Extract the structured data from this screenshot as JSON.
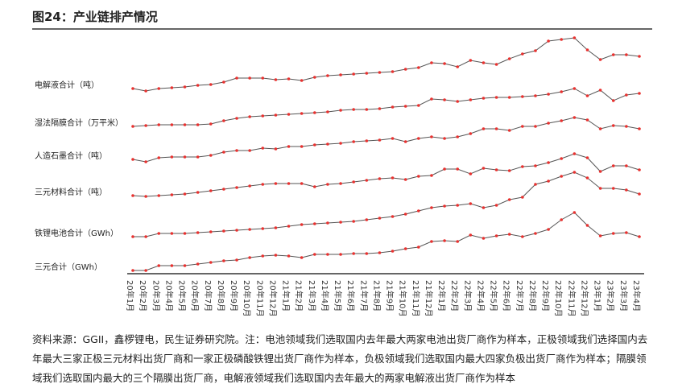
{
  "chart_data": {
    "type": "line",
    "title": "图24：产业链排产情况",
    "categories": [
      "20年1月",
      "20年2月",
      "20年3月",
      "20年4月",
      "20年5月",
      "20年6月",
      "20年7月",
      "20年8月",
      "20年9月",
      "20年10月",
      "20年11月",
      "20年12月",
      "21年1月",
      "21年2月",
      "21年3月",
      "21年4月",
      "21年5月",
      "21年6月",
      "21年7月",
      "21年8月",
      "21年9月",
      "21年10月",
      "21年11月",
      "21年12月",
      "22年1月",
      "22年2月",
      "22年3月",
      "22年4月",
      "22年5月",
      "22年6月",
      "22年7月",
      "22年8月",
      "22年9月",
      "22年10月",
      "22年11月",
      "22年12月",
      "23年1月",
      "23年2月",
      "23年3月",
      "23年4月"
    ],
    "ylim": [
      0,
      302
    ],
    "line_color": "#555555",
    "marker_color": "#e8312f",
    "series": [
      {
        "name": "电解液合计（吨）",
        "values": [
          230,
          227,
          230,
          231,
          232,
          234,
          235,
          238,
          243,
          243,
          243,
          241,
          242,
          240,
          244,
          246,
          247,
          248,
          249,
          250,
          251,
          254,
          256,
          262,
          261,
          257,
          265,
          262,
          260,
          267,
          273,
          277,
          289,
          291,
          293,
          278,
          266,
          272,
          272,
          270
        ]
      },
      {
        "name": "湿法隔膜合计（万平米）",
        "values": [
          183,
          184,
          185,
          185,
          185,
          185,
          186,
          190,
          193,
          195,
          196,
          197,
          198,
          199,
          200,
          201,
          203,
          204,
          204,
          205,
          207,
          208,
          209,
          217,
          216,
          214,
          216,
          218,
          219,
          219,
          220,
          221,
          223,
          226,
          230,
          221,
          228,
          215,
          222,
          224
        ]
      },
      {
        "name": "人造石墨合计（吨）",
        "values": [
          142,
          139,
          144,
          145,
          145,
          145,
          147,
          151,
          153,
          153,
          156,
          155,
          158,
          158,
          160,
          161,
          162,
          164,
          165,
          166,
          168,
          164,
          168,
          170,
          168,
          170,
          174,
          180,
          180,
          178,
          183,
          183,
          187,
          190,
          194,
          191,
          180,
          184,
          183,
          180
        ]
      },
      {
        "name": "三元材料合计（吨）",
        "values": [
          97,
          96,
          97,
          98,
          99,
          101,
          103,
          105,
          107,
          109,
          111,
          112,
          112,
          112,
          108,
          111,
          112,
          114,
          116,
          118,
          119,
          117,
          121,
          122,
          130,
          130,
          124,
          131,
          129,
          128,
          133,
          134,
          138,
          143,
          149,
          144,
          127,
          134,
          134,
          129
        ]
      },
      {
        "name": "铁锂电池合计（GWh）",
        "values": [
          46,
          46,
          50,
          50,
          50,
          51,
          52,
          53,
          54,
          55,
          56,
          57,
          59,
          61,
          62,
          63,
          64,
          65,
          67,
          69,
          71,
          74,
          78,
          82,
          84,
          85,
          87,
          82,
          85,
          92,
          95,
          111,
          115,
          121,
          126,
          119,
          106,
          106,
          104,
          99
        ]
      },
      {
        "name": "三元合计（GWh）",
        "values": [
          4,
          4,
          10,
          10,
          10,
          12,
          14,
          16,
          17,
          20,
          22,
          23,
          22,
          20,
          24,
          24,
          24,
          25,
          25,
          26,
          28,
          31,
          33,
          40,
          41,
          40,
          48,
          44,
          47,
          49,
          46,
          50,
          55,
          67,
          76,
          60,
          47,
          50,
          51,
          46
        ]
      }
    ]
  },
  "source": "资料来源：GGII，鑫椤锂电，民生证券研究院。注：电池领域我们选取国内去年最大两家电池出货厂商作为样本，正极领域我们选择国内去年最大三家正极三元材料出货厂商和一家正极磷酸铁锂出货厂商作为样本，负极领域我们选取国内最大四家负极出货厂商作为样本；隔膜领域我们选取国内最大的三个隔膜出货厂商，电解液领域我们选取国内去年最大的两家电解液出货厂商作为样本"
}
